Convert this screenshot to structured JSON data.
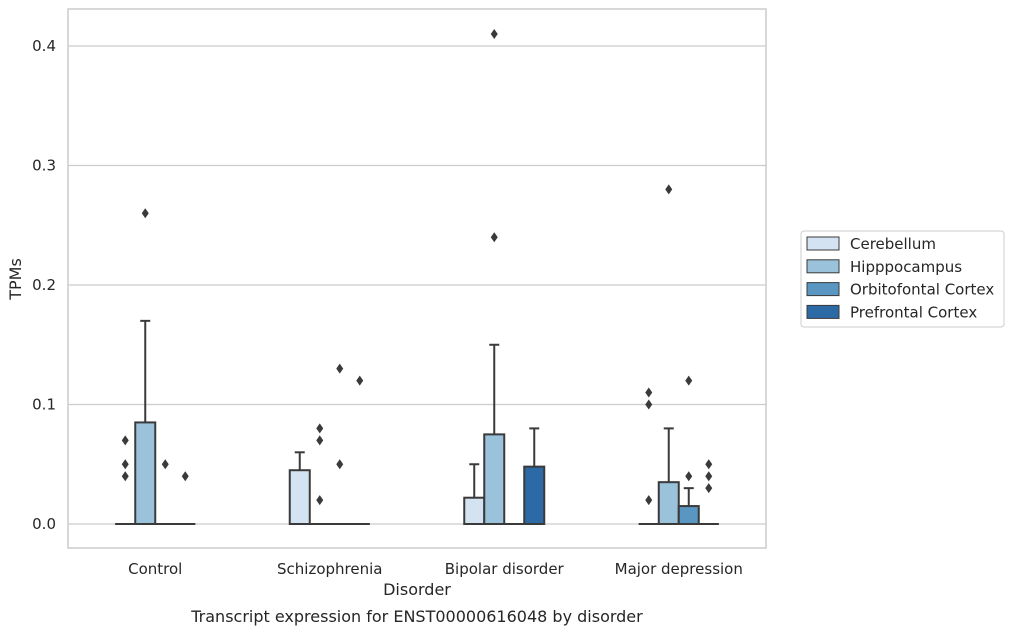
{
  "chart_data": {
    "type": "box",
    "caption": "Transcript expression for ENST00000616048 by disorder",
    "xlabel": "Disorder",
    "ylabel": "TPMs",
    "ylim": [
      -0.02,
      0.432
    ],
    "yticks": [
      0.0,
      0.1,
      0.2,
      0.3,
      0.4
    ],
    "ytick_labels": [
      "0.0",
      "0.1",
      "0.2",
      "0.3",
      "0.4"
    ],
    "grid": "horizontal",
    "legend_position": "right",
    "categories": [
      "Control",
      "Schizophrenia",
      "Bipolar disorder",
      "Major depression"
    ],
    "series": [
      {
        "name": "Cerebellum",
        "color": "#d4e3f1",
        "boxes": [
          {
            "q1": 0,
            "median": 0,
            "q3": 0,
            "whisker_low": 0,
            "whisker_high": 0,
            "outliers": [
              0.07,
              0.05,
              0.04
            ]
          },
          {
            "q1": 0,
            "median": 0,
            "q3": 0.045,
            "whisker_low": 0,
            "whisker_high": 0.06,
            "outliers": []
          },
          {
            "q1": 0,
            "median": 0,
            "q3": 0.022,
            "whisker_low": 0,
            "whisker_high": 0.05,
            "outliers": []
          },
          {
            "q1": 0,
            "median": 0,
            "q3": 0,
            "whisker_low": 0,
            "whisker_high": 0,
            "outliers": [
              0.11,
              0.1,
              0.02
            ]
          }
        ]
      },
      {
        "name": "Hipppocampus",
        "color": "#9ac2db",
        "boxes": [
          {
            "q1": 0,
            "median": 0,
            "q3": 0.085,
            "whisker_low": 0,
            "whisker_high": 0.17,
            "outliers": [
              0.26
            ]
          },
          {
            "q1": 0,
            "median": 0,
            "q3": 0,
            "whisker_low": 0,
            "whisker_high": 0,
            "outliers": [
              0.08,
              0.07,
              0.02
            ]
          },
          {
            "q1": 0,
            "median": 0,
            "q3": 0.075,
            "whisker_low": 0,
            "whisker_high": 0.15,
            "outliers": [
              0.41,
              0.24
            ]
          },
          {
            "q1": 0,
            "median": 0,
            "q3": 0.035,
            "whisker_low": 0,
            "whisker_high": 0.08,
            "outliers": [
              0.28
            ]
          }
        ]
      },
      {
        "name": "Orbitofontal Cortex",
        "color": "#5a96c2",
        "boxes": [
          {
            "q1": 0,
            "median": 0,
            "q3": 0,
            "whisker_low": 0,
            "whisker_high": 0,
            "outliers": [
              0.05
            ]
          },
          {
            "q1": 0,
            "median": 0,
            "q3": 0,
            "whisker_low": 0,
            "whisker_high": 0,
            "outliers": [
              0.13,
              0.05
            ]
          },
          {
            "q1": 0,
            "median": 0,
            "q3": 0,
            "whisker_low": 0,
            "whisker_high": 0,
            "outliers": []
          },
          {
            "q1": 0,
            "median": 0,
            "q3": 0.015,
            "whisker_low": 0,
            "whisker_high": 0.03,
            "outliers": [
              0.12,
              0.04
            ]
          }
        ]
      },
      {
        "name": "Prefrontal Cortex",
        "color": "#2b6aa5",
        "boxes": [
          {
            "q1": 0,
            "median": 0,
            "q3": 0,
            "whisker_low": 0,
            "whisker_high": 0,
            "outliers": [
              0.04
            ]
          },
          {
            "q1": 0,
            "median": 0,
            "q3": 0,
            "whisker_low": 0,
            "whisker_high": 0,
            "outliers": [
              0.12
            ]
          },
          {
            "q1": 0,
            "median": 0,
            "q3": 0.048,
            "whisker_low": 0,
            "whisker_high": 0.08,
            "outliers": []
          },
          {
            "q1": 0,
            "median": 0,
            "q3": 0,
            "whisker_low": 0,
            "whisker_high": 0,
            "outliers": [
              0.05,
              0.04,
              0.03
            ]
          }
        ]
      }
    ]
  }
}
